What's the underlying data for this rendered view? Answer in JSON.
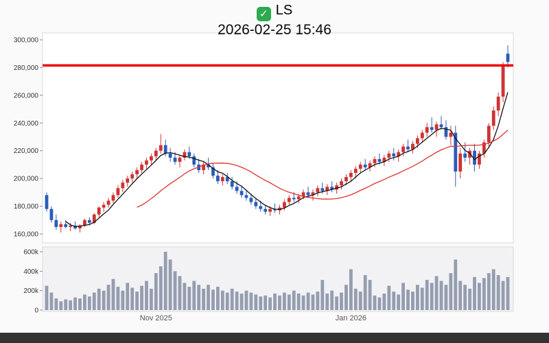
{
  "header": {
    "symbol": "LS",
    "timestamp": "2026-02-25 15:46",
    "check_glyph": "✓",
    "check_icon_color": "#2eaa4e"
  },
  "chart_data": {
    "type": "candlestick",
    "title": "LS",
    "subtitle": "2026-02-25 15:46",
    "grid": false,
    "legend": "none",
    "price_axis": {
      "min": 160000,
      "max": 300000,
      "ticks": [
        {
          "v": 160000,
          "label": "160,000"
        },
        {
          "v": 180000,
          "label": "180,000"
        },
        {
          "v": 200000,
          "label": "200,000"
        },
        {
          "v": 220000,
          "label": "220,000"
        },
        {
          "v": 240000,
          "label": "240,000"
        },
        {
          "v": 260000,
          "label": "260,000"
        },
        {
          "v": 280000,
          "label": "280,000"
        },
        {
          "v": 300000,
          "label": "300,000"
        }
      ]
    },
    "volume_axis": {
      "min": 0,
      "max": 600,
      "unit": "thousand-shares",
      "ticks": [
        {
          "v": 0,
          "label": "0"
        },
        {
          "v": 200,
          "label": "200k"
        },
        {
          "v": 400,
          "label": "400k"
        },
        {
          "v": 600,
          "label": "600k"
        }
      ]
    },
    "x_ticks": [
      {
        "index": 23,
        "label": "Nov 2025"
      },
      {
        "index": 64,
        "label": "Jan 2026"
      }
    ],
    "reference_line": {
      "value": 281500,
      "color": "#ee0000"
    },
    "colors": {
      "up": "#cf3333",
      "down": "#2b5cb8",
      "volume": "#959db0",
      "panel": "#ffffff",
      "volume_panel": "#f2f2f4",
      "border": "#d9d9d9"
    },
    "moving_averages": [
      {
        "name": "fast",
        "period": 5,
        "color": "#111111"
      },
      {
        "name": "slow",
        "period": 20,
        "color": "#e03030"
      }
    ],
    "candles": [
      [
        188000,
        190000,
        176000,
        178000
      ],
      [
        178000,
        180000,
        168000,
        170000
      ],
      [
        170000,
        174000,
        163000,
        165000
      ],
      [
        165000,
        169000,
        161000,
        167000
      ],
      [
        167000,
        170000,
        164000,
        165000
      ],
      [
        165000,
        168000,
        162000,
        166000
      ],
      [
        166000,
        169000,
        163000,
        164000
      ],
      [
        164000,
        167000,
        161000,
        166000
      ],
      [
        166000,
        171000,
        165000,
        170000
      ],
      [
        170000,
        172000,
        166000,
        168000
      ],
      [
        168000,
        175000,
        167000,
        174000
      ],
      [
        174000,
        180000,
        172000,
        179000
      ],
      [
        179000,
        183000,
        176000,
        181000
      ],
      [
        181000,
        186000,
        179000,
        184000
      ],
      [
        184000,
        190000,
        182000,
        188000
      ],
      [
        188000,
        195000,
        186000,
        193000
      ],
      [
        193000,
        199000,
        190000,
        197000
      ],
      [
        197000,
        202000,
        194000,
        200000
      ],
      [
        200000,
        205000,
        197000,
        203000
      ],
      [
        203000,
        208000,
        200000,
        206000
      ],
      [
        206000,
        212000,
        204000,
        210000
      ],
      [
        210000,
        215000,
        207000,
        213000
      ],
      [
        213000,
        218000,
        210000,
        216000
      ],
      [
        216000,
        222000,
        213000,
        220000
      ],
      [
        220000,
        232000,
        218000,
        224000
      ],
      [
        224000,
        228000,
        216000,
        218000
      ],
      [
        218000,
        222000,
        212000,
        215000
      ],
      [
        215000,
        219000,
        210000,
        212000
      ],
      [
        212000,
        217000,
        208000,
        215000
      ],
      [
        215000,
        221000,
        213000,
        219000
      ],
      [
        219000,
        223000,
        214000,
        216000
      ],
      [
        216000,
        218000,
        208000,
        210000
      ],
      [
        210000,
        214000,
        204000,
        206000
      ],
      [
        206000,
        212000,
        203000,
        210000
      ],
      [
        210000,
        215000,
        206000,
        208000
      ],
      [
        208000,
        211000,
        200000,
        202000
      ],
      [
        202000,
        206000,
        196000,
        198000
      ],
      [
        198000,
        203000,
        195000,
        201000
      ],
      [
        201000,
        204000,
        196000,
        198000
      ],
      [
        198000,
        201000,
        192000,
        194000
      ],
      [
        194000,
        198000,
        189000,
        191000
      ],
      [
        191000,
        195000,
        186000,
        188000
      ],
      [
        188000,
        192000,
        184000,
        186000
      ],
      [
        186000,
        189000,
        181000,
        183000
      ],
      [
        183000,
        186000,
        178000,
        180000
      ],
      [
        180000,
        184000,
        176000,
        178000
      ],
      [
        178000,
        181000,
        174000,
        176000
      ],
      [
        176000,
        180000,
        173000,
        178000
      ],
      [
        178000,
        182000,
        175000,
        177000
      ],
      [
        177000,
        181000,
        174000,
        179000
      ],
      [
        179000,
        185000,
        177000,
        183000
      ],
      [
        183000,
        188000,
        181000,
        186000
      ],
      [
        186000,
        190000,
        183000,
        185000
      ],
      [
        185000,
        189000,
        182000,
        187000
      ],
      [
        187000,
        192000,
        185000,
        190000
      ],
      [
        190000,
        194000,
        186000,
        188000
      ],
      [
        188000,
        192000,
        184000,
        190000
      ],
      [
        190000,
        195000,
        187000,
        193000
      ],
      [
        193000,
        197000,
        189000,
        191000
      ],
      [
        191000,
        196000,
        188000,
        194000
      ],
      [
        194000,
        198000,
        190000,
        192000
      ],
      [
        192000,
        197000,
        189000,
        195000
      ],
      [
        195000,
        200000,
        192000,
        198000
      ],
      [
        198000,
        203000,
        195000,
        201000
      ],
      [
        201000,
        206000,
        198000,
        204000
      ],
      [
        204000,
        209000,
        200000,
        207000
      ],
      [
        207000,
        212000,
        204000,
        210000
      ],
      [
        210000,
        214000,
        206000,
        208000
      ],
      [
        208000,
        213000,
        205000,
        211000
      ],
      [
        211000,
        216000,
        208000,
        214000
      ],
      [
        214000,
        218000,
        210000,
        212000
      ],
      [
        212000,
        217000,
        209000,
        215000
      ],
      [
        215000,
        220000,
        212000,
        218000
      ],
      [
        218000,
        222000,
        213000,
        216000
      ],
      [
        216000,
        221000,
        212000,
        219000
      ],
      [
        219000,
        225000,
        216000,
        223000
      ],
      [
        223000,
        228000,
        219000,
        221000
      ],
      [
        221000,
        227000,
        218000,
        225000
      ],
      [
        225000,
        231000,
        222000,
        229000
      ],
      [
        229000,
        235000,
        226000,
        233000
      ],
      [
        233000,
        240000,
        230000,
        237000
      ],
      [
        237000,
        244000,
        233000,
        235000
      ],
      [
        235000,
        241000,
        230000,
        239000
      ],
      [
        239000,
        245000,
        235000,
        237000
      ],
      [
        237000,
        242000,
        228000,
        230000
      ],
      [
        230000,
        238000,
        224000,
        233000
      ],
      [
        233000,
        238000,
        194000,
        205000
      ],
      [
        205000,
        222000,
        200000,
        218000
      ],
      [
        218000,
        226000,
        212000,
        215000
      ],
      [
        215000,
        222000,
        210000,
        220000
      ],
      [
        220000,
        225000,
        205000,
        210000
      ],
      [
        210000,
        220000,
        207000,
        218000
      ],
      [
        218000,
        228000,
        215000,
        226000
      ],
      [
        226000,
        240000,
        222000,
        238000
      ],
      [
        238000,
        252000,
        235000,
        249000
      ],
      [
        249000,
        262000,
        245000,
        259000
      ],
      [
        259000,
        284000,
        255000,
        281000
      ],
      [
        290000,
        296000,
        280000,
        284000
      ]
    ],
    "volumes": [
      250,
      180,
      120,
      90,
      110,
      100,
      130,
      120,
      160,
      140,
      180,
      220,
      200,
      260,
      320,
      240,
      200,
      280,
      230,
      190,
      250,
      300,
      220,
      380,
      450,
      600,
      520,
      400,
      350,
      280,
      240,
      300,
      260,
      220,
      260,
      210,
      240,
      200,
      180,
      220,
      190,
      170,
      200,
      180,
      160,
      140,
      150,
      130,
      170,
      150,
      180,
      160,
      200,
      170,
      150,
      180,
      160,
      190,
      310,
      170,
      200,
      140,
      180,
      260,
      420,
      220,
      190,
      360,
      310,
      150,
      130,
      170,
      250,
      190,
      160,
      280,
      210,
      190,
      260,
      230,
      310,
      280,
      350,
      300,
      260,
      380,
      520,
      300,
      260,
      220,
      340,
      280,
      330,
      380,
      420,
      360,
      300,
      340
    ]
  }
}
